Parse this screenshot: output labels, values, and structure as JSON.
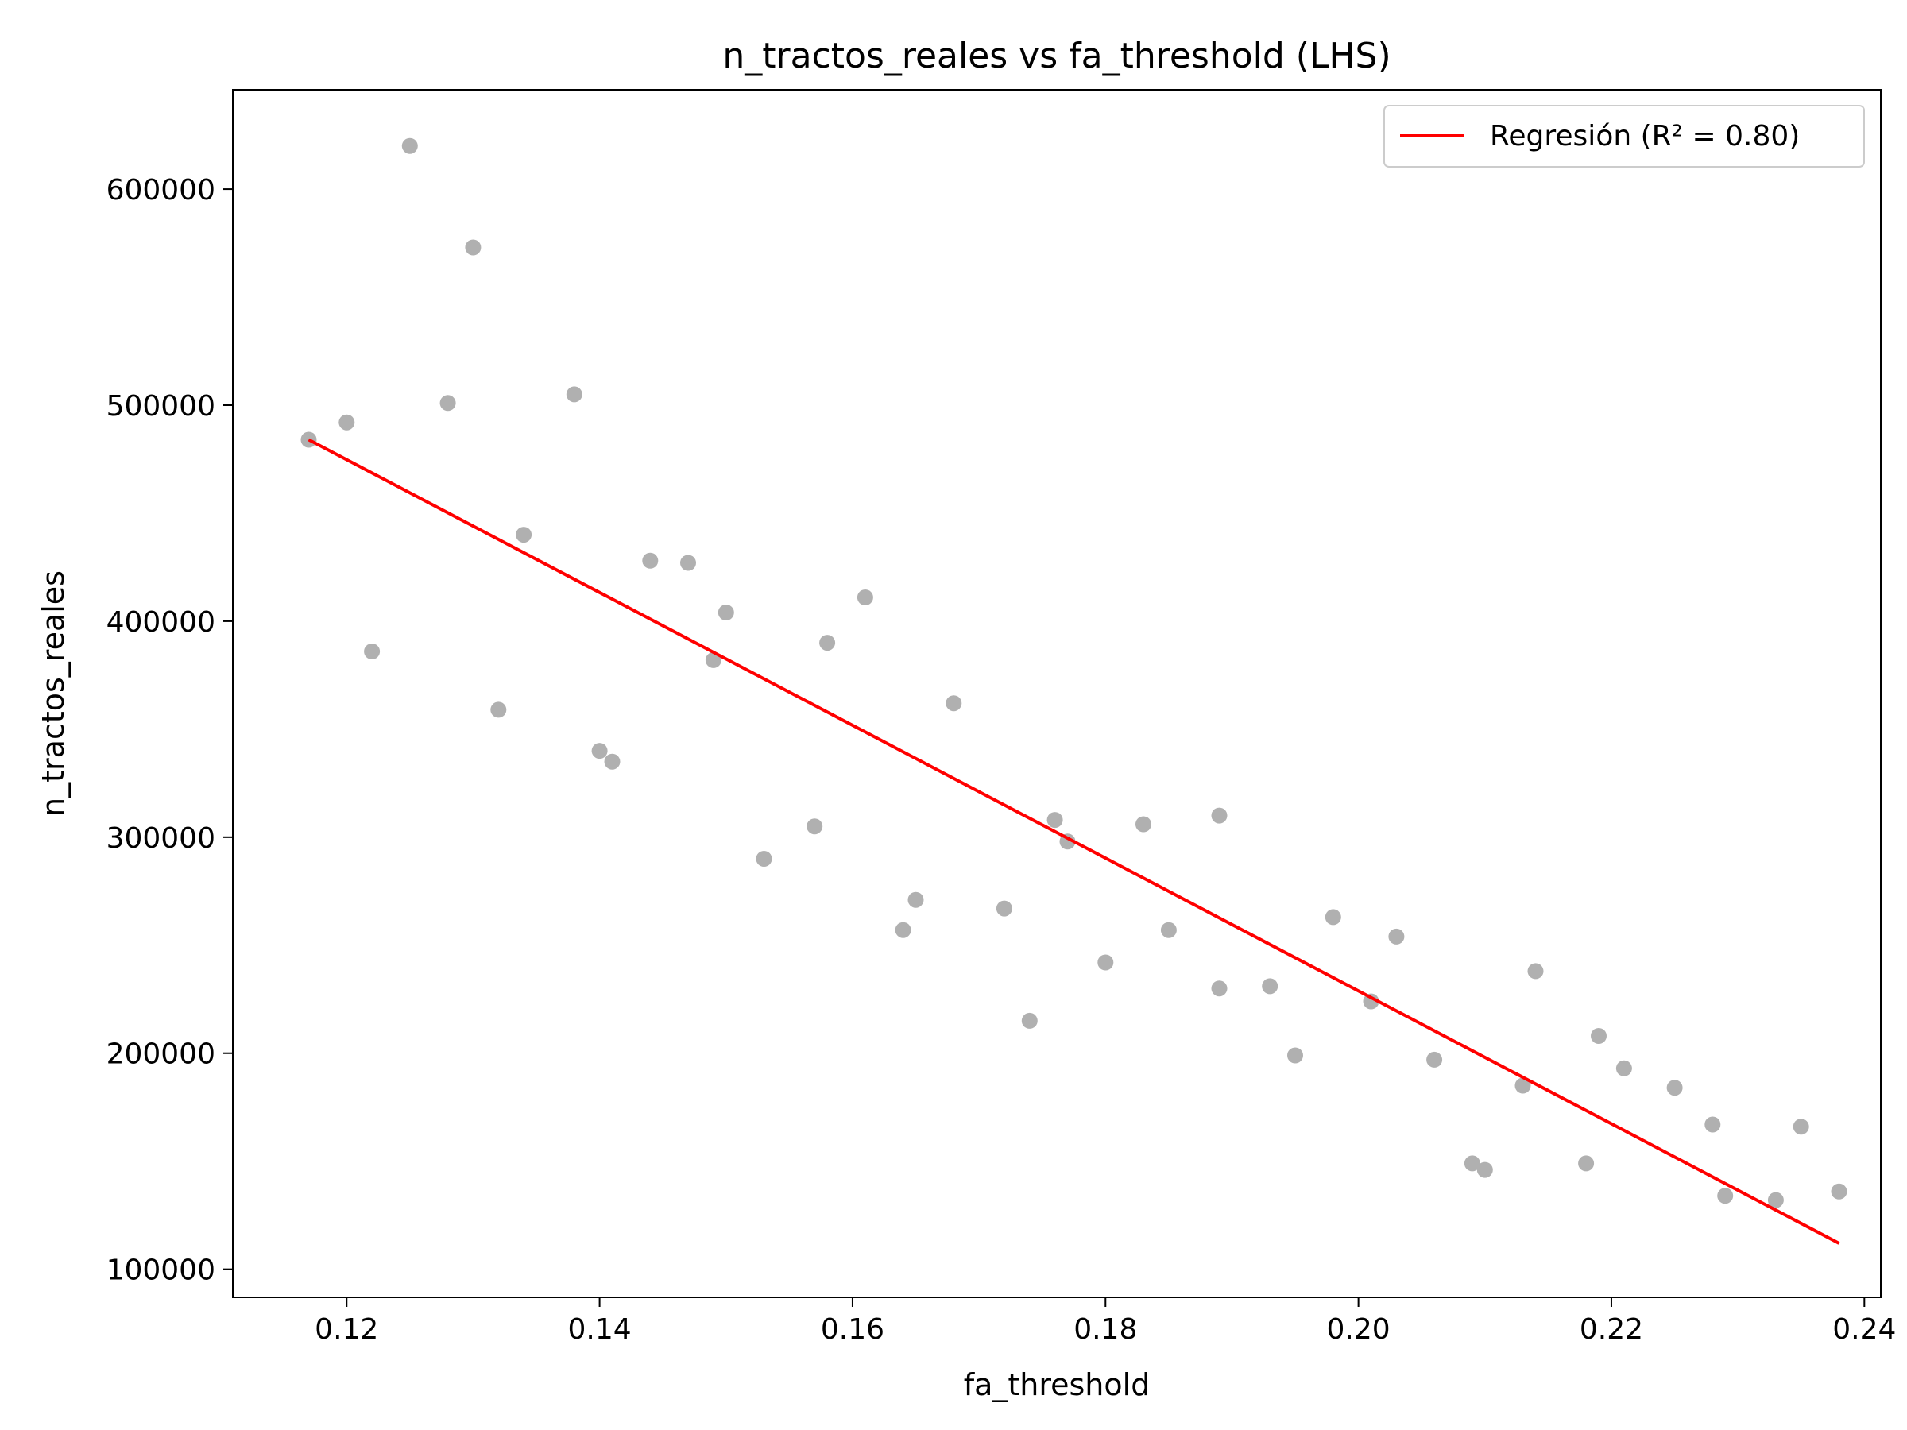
{
  "chart_data": {
    "type": "scatter",
    "title": "n_tractos_reales vs fa_threshold (LHS)",
    "xlabel": "fa_threshold",
    "ylabel": "n_tractos_reales",
    "xlim": [
      0.111,
      0.2413
    ],
    "ylim": [
      87000,
      646000
    ],
    "xticks": [
      0.12,
      0.14,
      0.16,
      0.18,
      0.2,
      0.22,
      0.24
    ],
    "xtick_labels": [
      "0.12",
      "0.14",
      "0.16",
      "0.18",
      "0.20",
      "0.22",
      "0.24"
    ],
    "yticks": [
      100000,
      200000,
      300000,
      400000,
      500000,
      600000
    ],
    "ytick_labels": [
      "100000",
      "200000",
      "300000",
      "400000",
      "500000",
      "600000"
    ],
    "grid": false,
    "legend_position": "top-right",
    "series": [
      {
        "kind": "scatter",
        "color": "#b0b0b0",
        "points": [
          [
            0.117,
            484000
          ],
          [
            0.12,
            492000
          ],
          [
            0.122,
            386000
          ],
          [
            0.125,
            620000
          ],
          [
            0.128,
            501000
          ],
          [
            0.13,
            573000
          ],
          [
            0.132,
            359000
          ],
          [
            0.134,
            440000
          ],
          [
            0.138,
            505000
          ],
          [
            0.14,
            340000
          ],
          [
            0.141,
            335000
          ],
          [
            0.144,
            428000
          ],
          [
            0.147,
            427000
          ],
          [
            0.149,
            382000
          ],
          [
            0.15,
            404000
          ],
          [
            0.153,
            290000
          ],
          [
            0.157,
            305000
          ],
          [
            0.158,
            390000
          ],
          [
            0.161,
            411000
          ],
          [
            0.164,
            257000
          ],
          [
            0.165,
            271000
          ],
          [
            0.168,
            362000
          ],
          [
            0.172,
            267000
          ],
          [
            0.174,
            215000
          ],
          [
            0.176,
            308000
          ],
          [
            0.177,
            298000
          ],
          [
            0.18,
            242000
          ],
          [
            0.183,
            306000
          ],
          [
            0.185,
            257000
          ],
          [
            0.189,
            310000
          ],
          [
            0.189,
            230000
          ],
          [
            0.193,
            231000
          ],
          [
            0.195,
            199000
          ],
          [
            0.198,
            263000
          ],
          [
            0.201,
            224000
          ],
          [
            0.203,
            254000
          ],
          [
            0.206,
            197000
          ],
          [
            0.209,
            149000
          ],
          [
            0.21,
            146000
          ],
          [
            0.213,
            185000
          ],
          [
            0.214,
            238000
          ],
          [
            0.218,
            149000
          ],
          [
            0.219,
            208000
          ],
          [
            0.221,
            193000
          ],
          [
            0.225,
            184000
          ],
          [
            0.228,
            167000
          ],
          [
            0.229,
            134000
          ],
          [
            0.233,
            132000
          ],
          [
            0.235,
            166000
          ],
          [
            0.238,
            136000
          ]
        ]
      },
      {
        "kind": "line",
        "name": "Regresión (R² = 0.80)",
        "color": "#ff0000",
        "x": [
          0.117,
          0.238
        ],
        "y": [
          484000,
          112000
        ]
      }
    ]
  }
}
